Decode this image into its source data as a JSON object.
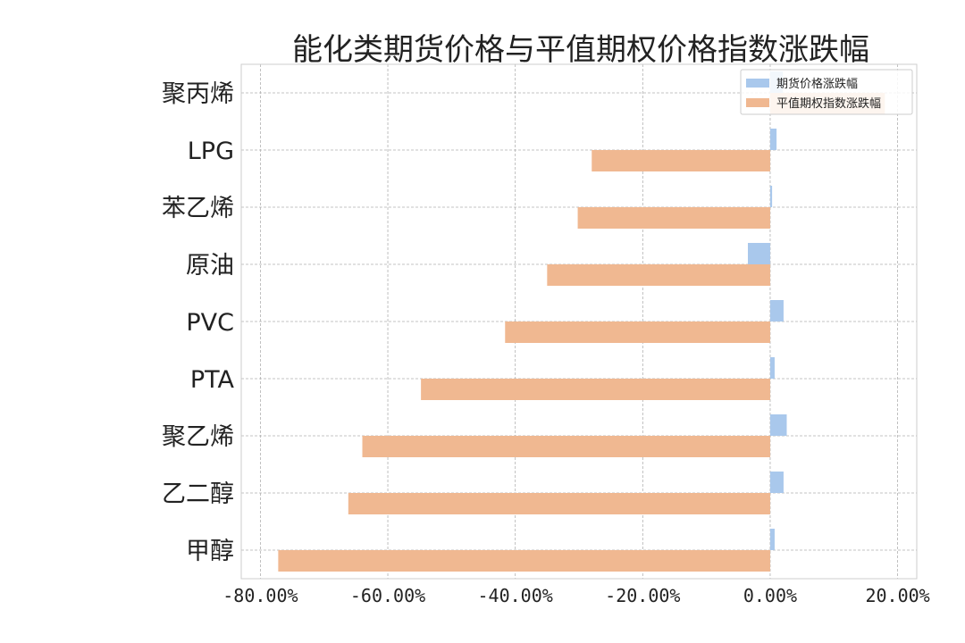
{
  "chart_data": {
    "type": "bar",
    "orientation": "horizontal",
    "title": "能化类期货价格与平值期权价格指数涨跌幅",
    "categories": [
      "聚丙烯",
      "LPG",
      "苯乙烯",
      "原油",
      "PVC",
      "PTA",
      "聚乙烯",
      "乙二醇",
      "甲醇"
    ],
    "series": [
      {
        "name": "期货价格涨跌幅",
        "color": "#a9c8ec",
        "values": [
          2.0,
          1.0,
          0.3,
          -3.5,
          2.1,
          0.7,
          2.6,
          2.1,
          0.7
        ]
      },
      {
        "name": "平值期权指数涨跌幅",
        "color": "#f0b891",
        "values": [
          18.0,
          -28.0,
          -30.2,
          -35.0,
          -41.6,
          -54.8,
          -64.0,
          -66.2,
          -77.2
        ]
      }
    ],
    "xlim": [
      -83,
      23
    ],
    "xticks": [
      -80,
      -60,
      -40,
      -20,
      0,
      20
    ],
    "xtick_labels": [
      "-80.00%",
      "-60.00%",
      "-40.00%",
      "-20.00%",
      "0.00%",
      "20.00%"
    ],
    "grid": true,
    "legend_position": "top-right"
  }
}
